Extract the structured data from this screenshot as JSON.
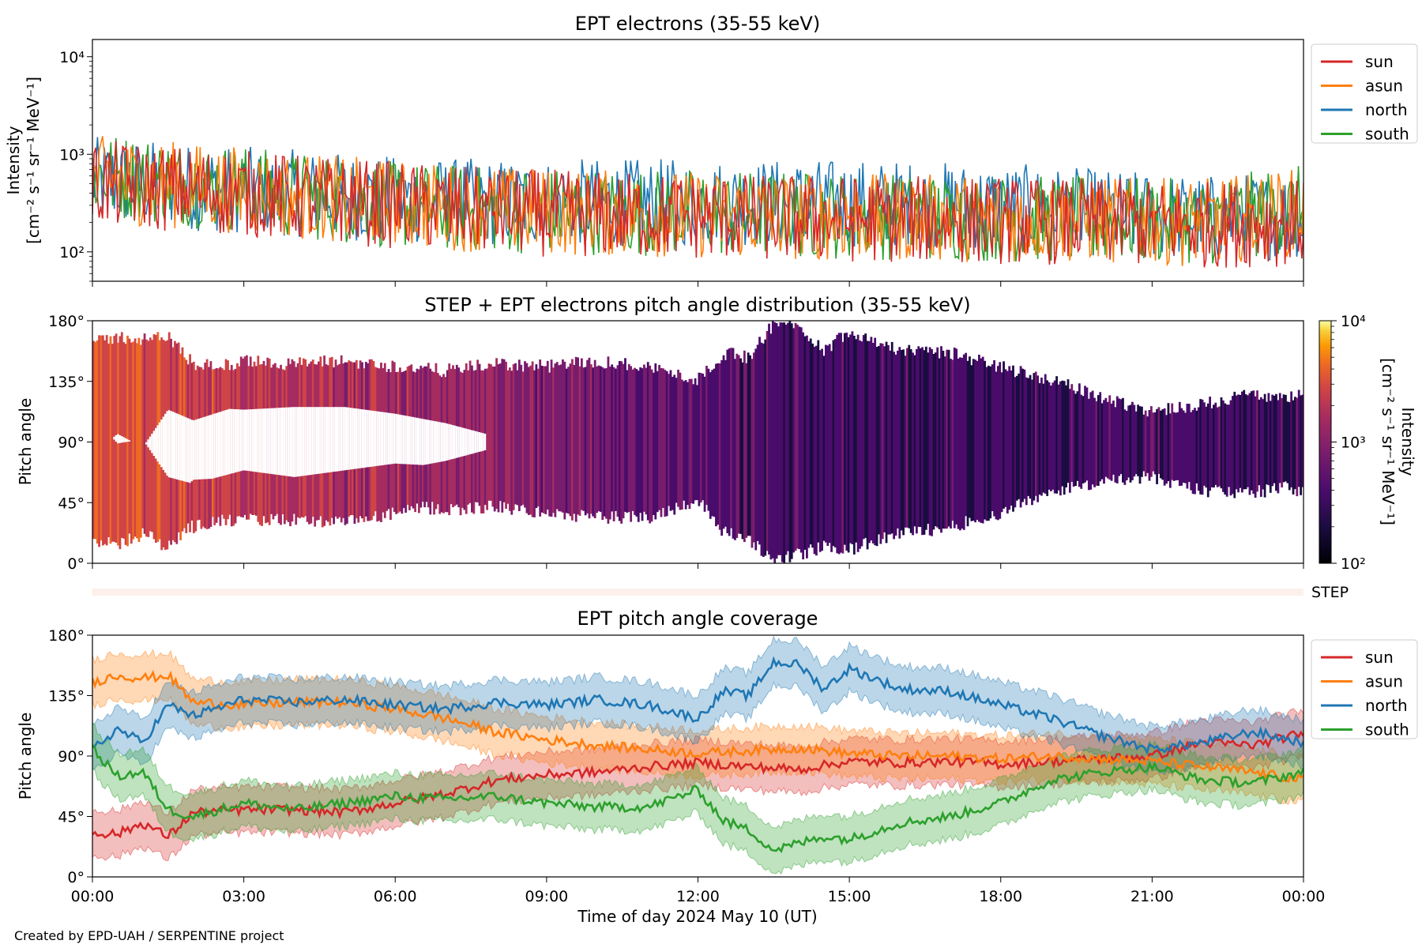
{
  "figure": {
    "credit": "Created by EPD-UAH / SERPENTINE project",
    "xlabel": "Time of day 2024 May 10 (UT)",
    "x_ticks": [
      "00:00",
      "03:00",
      "06:00",
      "09:00",
      "12:00",
      "15:00",
      "18:00",
      "21:00",
      "00:00"
    ],
    "colors": {
      "sun": "#d62728",
      "asun": "#ff7f0e",
      "north": "#1f77b4",
      "south": "#2ca02c"
    }
  },
  "chart_data": [
    {
      "type": "line",
      "title": "EPT electrons (35-55 keV)",
      "ylabel_line1": "Intensity",
      "ylabel_line2": "[cm⁻² s⁻¹ sr⁻¹ MeV⁻¹]",
      "yscale": "log",
      "ylim": [
        50,
        15000
      ],
      "y_ticks": [
        "10²",
        "10³",
        "10⁴"
      ],
      "x_range_hours": [
        0,
        24
      ],
      "legend_position": "right-top",
      "legend": [
        "sun",
        "asun",
        "north",
        "south"
      ],
      "series": [
        {
          "name": "sun",
          "color": "#d62728",
          "x": [
            0,
            2,
            4,
            6,
            8,
            10,
            12,
            14,
            16,
            18,
            20,
            22,
            24
          ],
          "values": [
            500,
            430,
            360,
            300,
            260,
            240,
            230,
            220,
            215,
            210,
            200,
            190,
            200
          ]
        },
        {
          "name": "asun",
          "color": "#ff7f0e",
          "x": [
            0,
            2,
            4,
            6,
            8,
            10,
            12,
            14,
            16,
            18,
            20,
            22,
            24
          ],
          "values": [
            560,
            470,
            380,
            310,
            270,
            250,
            240,
            230,
            225,
            220,
            210,
            200,
            260
          ]
        },
        {
          "name": "north",
          "color": "#1f77b4",
          "x": [
            0,
            2,
            4,
            6,
            8,
            10,
            12,
            14,
            16,
            18,
            20,
            22,
            24
          ],
          "values": [
            540,
            460,
            400,
            340,
            320,
            320,
            320,
            320,
            310,
            290,
            250,
            220,
            240
          ]
        },
        {
          "name": "south",
          "color": "#2ca02c",
          "x": [
            0,
            2,
            4,
            6,
            8,
            10,
            12,
            14,
            16,
            18,
            20,
            22,
            24
          ],
          "values": [
            620,
            500,
            380,
            300,
            270,
            260,
            250,
            240,
            230,
            220,
            210,
            200,
            280
          ]
        }
      ]
    },
    {
      "type": "heatmap",
      "title": "STEP + EPT electrons pitch angle distribution (35-55 keV)",
      "ylabel": "Pitch angle",
      "ylim": [
        0,
        180
      ],
      "y_ticks": [
        "0°",
        "45°",
        "90°",
        "135°",
        "180°"
      ],
      "colorbar_label_line1": "Intensity",
      "colorbar_label_line2": "[cm⁻² s⁻¹ sr⁻¹ MeV⁻¹]",
      "colorbar_ticks": [
        "10²",
        "10³",
        "10⁴"
      ],
      "colorbar_range": [
        100,
        10000
      ],
      "colormap": "inferno",
      "step_label": "STEP"
    },
    {
      "type": "line",
      "title": "EPT pitch angle coverage",
      "ylabel": "Pitch angle",
      "ylim": [
        0,
        180
      ],
      "y_ticks": [
        "0°",
        "45°",
        "90°",
        "135°",
        "180°"
      ],
      "legend_position": "right-top",
      "legend": [
        "sun",
        "asun",
        "north",
        "south"
      ],
      "series": [
        {
          "name": "sun",
          "color": "#d62728",
          "band_halfwidth": 17,
          "x": [
            0,
            0.5,
            1,
            1.5,
            2,
            3,
            4,
            5,
            6,
            7,
            8,
            9,
            10,
            11,
            12,
            13,
            14,
            15,
            16,
            17,
            18,
            19,
            20,
            21,
            22,
            23,
            24
          ],
          "values": [
            33,
            32,
            40,
            30,
            48,
            50,
            50,
            48,
            55,
            62,
            72,
            76,
            78,
            82,
            85,
            82,
            80,
            86,
            85,
            86,
            84,
            86,
            88,
            90,
            100,
            98,
            107
          ]
        },
        {
          "name": "asun",
          "color": "#ff7f0e",
          "band_halfwidth": 17,
          "x": [
            0,
            0.5,
            1,
            1.5,
            2,
            3,
            4,
            5,
            6,
            7,
            8,
            9,
            10,
            11,
            12,
            13,
            14,
            15,
            16,
            17,
            18,
            19,
            20,
            21,
            22,
            23,
            24
          ],
          "values": [
            145,
            150,
            148,
            150,
            130,
            128,
            130,
            130,
            125,
            118,
            108,
            102,
            98,
            95,
            92,
            94,
            96,
            92,
            90,
            90,
            88,
            90,
            88,
            86,
            82,
            78,
            72
          ]
        },
        {
          "name": "north",
          "color": "#1f77b4",
          "band_halfwidth": 17,
          "x": [
            0,
            0.5,
            1,
            1.5,
            2,
            3,
            4,
            5,
            6,
            7,
            8,
            9,
            10,
            11,
            12,
            12.5,
            13,
            13.5,
            14,
            14.5,
            15,
            16,
            17,
            18,
            19,
            20,
            21,
            22,
            23,
            24
          ],
          "values": [
            95,
            110,
            100,
            128,
            120,
            132,
            130,
            132,
            128,
            125,
            130,
            128,
            132,
            128,
            118,
            138,
            135,
            160,
            158,
            140,
            155,
            140,
            138,
            128,
            118,
            105,
            95,
            100,
            108,
            100
          ]
        },
        {
          "name": "south",
          "color": "#2ca02c",
          "band_halfwidth": 17,
          "x": [
            0,
            0.5,
            1,
            1.5,
            2,
            3,
            4,
            5,
            6,
            7,
            8,
            9,
            10,
            11,
            12,
            12.5,
            13,
            13.5,
            14,
            14.5,
            15,
            16,
            17,
            18,
            19,
            20,
            21,
            22,
            23,
            24
          ],
          "values": [
            95,
            75,
            78,
            50,
            45,
            55,
            50,
            55,
            60,
            58,
            60,
            55,
            52,
            52,
            65,
            42,
            35,
            20,
            25,
            30,
            28,
            40,
            45,
            55,
            72,
            78,
            82,
            72,
            70,
            78
          ]
        }
      ]
    }
  ]
}
